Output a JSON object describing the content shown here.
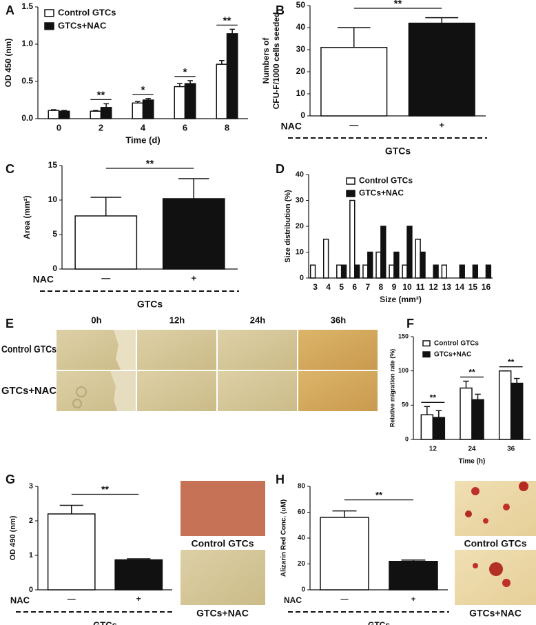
{
  "chart_data": [
    {
      "type": "bar",
      "panel": "A",
      "ylabel": "OD 450 (nm)",
      "xlabel": "Time (d)",
      "categories": [
        "0",
        "2",
        "4",
        "6",
        "8"
      ],
      "series": [
        {
          "name": "Control GTCs",
          "color": "#ffffff",
          "values": [
            0.11,
            0.1,
            0.21,
            0.43,
            0.73
          ],
          "errors": [
            0.01,
            0.01,
            0.02,
            0.04,
            0.05
          ]
        },
        {
          "name": "GTCs+NAC",
          "color": "#111111",
          "values": [
            0.1,
            0.15,
            0.25,
            0.47,
            1.14
          ],
          "errors": [
            0.01,
            0.05,
            0.02,
            0.04,
            0.06
          ]
        }
      ],
      "significance": [
        null,
        "**",
        "*",
        "*",
        "**"
      ],
      "ylim": [
        0,
        1.5
      ],
      "yticks": [
        {
          "value": 0,
          "label": "0.0"
        },
        0.5,
        {
          "value": 1,
          "label": "1.0"
        },
        1.5
      ],
      "legend": "upper-left"
    },
    {
      "type": "bar",
      "panel": "B",
      "ylabel": [
        "Numbers of",
        "CFU-F/1000 cells seeded"
      ],
      "categories": [
        "—",
        "+"
      ],
      "values": [
        31,
        42
      ],
      "errors": [
        9,
        2.5
      ],
      "colors": [
        "#ffffff",
        "#111111"
      ],
      "significance": "**",
      "group_label": "NAC",
      "group_caption": "GTCs",
      "ylim": [
        0,
        50
      ],
      "yticks": [
        0,
        10,
        20,
        30,
        40,
        50
      ]
    },
    {
      "type": "bar",
      "panel": "C",
      "ylabel": "Area (mm²)",
      "categories": [
        "—",
        "+"
      ],
      "values": [
        7.7,
        10.2
      ],
      "errors": [
        2.7,
        2.9
      ],
      "colors": [
        "#ffffff",
        "#111111"
      ],
      "significance": "**",
      "group_label": "NAC",
      "group_caption": "GTCs",
      "ylim": [
        0,
        15
      ],
      "yticks": [
        0,
        5,
        10,
        15
      ]
    },
    {
      "type": "bar",
      "panel": "D",
      "ylabel": "Size distribution (%)",
      "xlabel": "Size (mm²)",
      "categories": [
        "3",
        "4",
        "5",
        "6",
        "7",
        "8",
        "9",
        "10",
        "11",
        "12",
        "13",
        "14",
        "15",
        "16"
      ],
      "series": [
        {
          "name": "Control GTCs",
          "color": "#ffffff",
          "values": [
            5,
            15,
            5,
            30,
            5,
            10,
            5,
            5,
            15,
            0,
            5,
            0,
            0,
            0
          ]
        },
        {
          "name": "GTCs+NAC",
          "color": "#111111",
          "values": [
            0,
            0,
            5,
            5,
            10,
            20,
            10,
            20,
            10,
            5,
            0,
            5,
            5,
            5
          ]
        }
      ],
      "ylim": [
        0,
        40
      ],
      "yticks": [
        0,
        10,
        20,
        30,
        40
      ],
      "legend": "upper-left"
    },
    {
      "type": "bar",
      "panel": "F",
      "ylabel": "Relative migration rate (%)",
      "xlabel": "Time (h)",
      "categories": [
        "12",
        "24",
        "36"
      ],
      "series": [
        {
          "name": "Control GTCs",
          "color": "#ffffff",
          "values": [
            36,
            75,
            100
          ],
          "errors": [
            12,
            10,
            0
          ]
        },
        {
          "name": "GTCs+NAC",
          "color": "#111111",
          "values": [
            32,
            58,
            82
          ],
          "errors": [
            10,
            8,
            7
          ]
        }
      ],
      "significance": [
        "**",
        "**",
        "**"
      ],
      "ylim": [
        0,
        150
      ],
      "yticks": [
        0,
        50,
        100,
        150
      ],
      "legend": "upper-left"
    },
    {
      "type": "bar",
      "panel": "G",
      "ylabel": "OD 490 (nm)",
      "categories": [
        "—",
        "+"
      ],
      "values": [
        2.2,
        0.87
      ],
      "errors": [
        0.25,
        0.03
      ],
      "colors": [
        "#ffffff",
        "#111111"
      ],
      "significance": "**",
      "group_label": "NAC",
      "group_caption": "GTCs",
      "ylim": [
        0,
        3
      ],
      "yticks": [
        0,
        1,
        2,
        3
      ]
    },
    {
      "type": "bar",
      "panel": "H",
      "ylabel": "Alizarin Red Conc. (uM)",
      "categories": [
        "—",
        "+"
      ],
      "values": [
        56,
        22
      ],
      "errors": [
        5,
        1
      ],
      "colors": [
        "#ffffff",
        "#111111"
      ],
      "significance": "**",
      "group_label": "NAC",
      "group_caption": "GTCs",
      "ylim": [
        0,
        80
      ],
      "yticks": [
        0,
        20,
        40,
        60,
        80
      ]
    }
  ],
  "panel_e": {
    "panel": "E",
    "columns": [
      "0h",
      "12h",
      "24h",
      "36h"
    ],
    "rows": [
      "Control GTCs",
      "GTCs+NAC"
    ]
  },
  "panel_g_images": {
    "captions": [
      "Control GTCs",
      "GTCs+NAC"
    ]
  },
  "panel_h_images": {
    "captions": [
      "Control GTCs",
      "GTCs+NAC"
    ]
  }
}
